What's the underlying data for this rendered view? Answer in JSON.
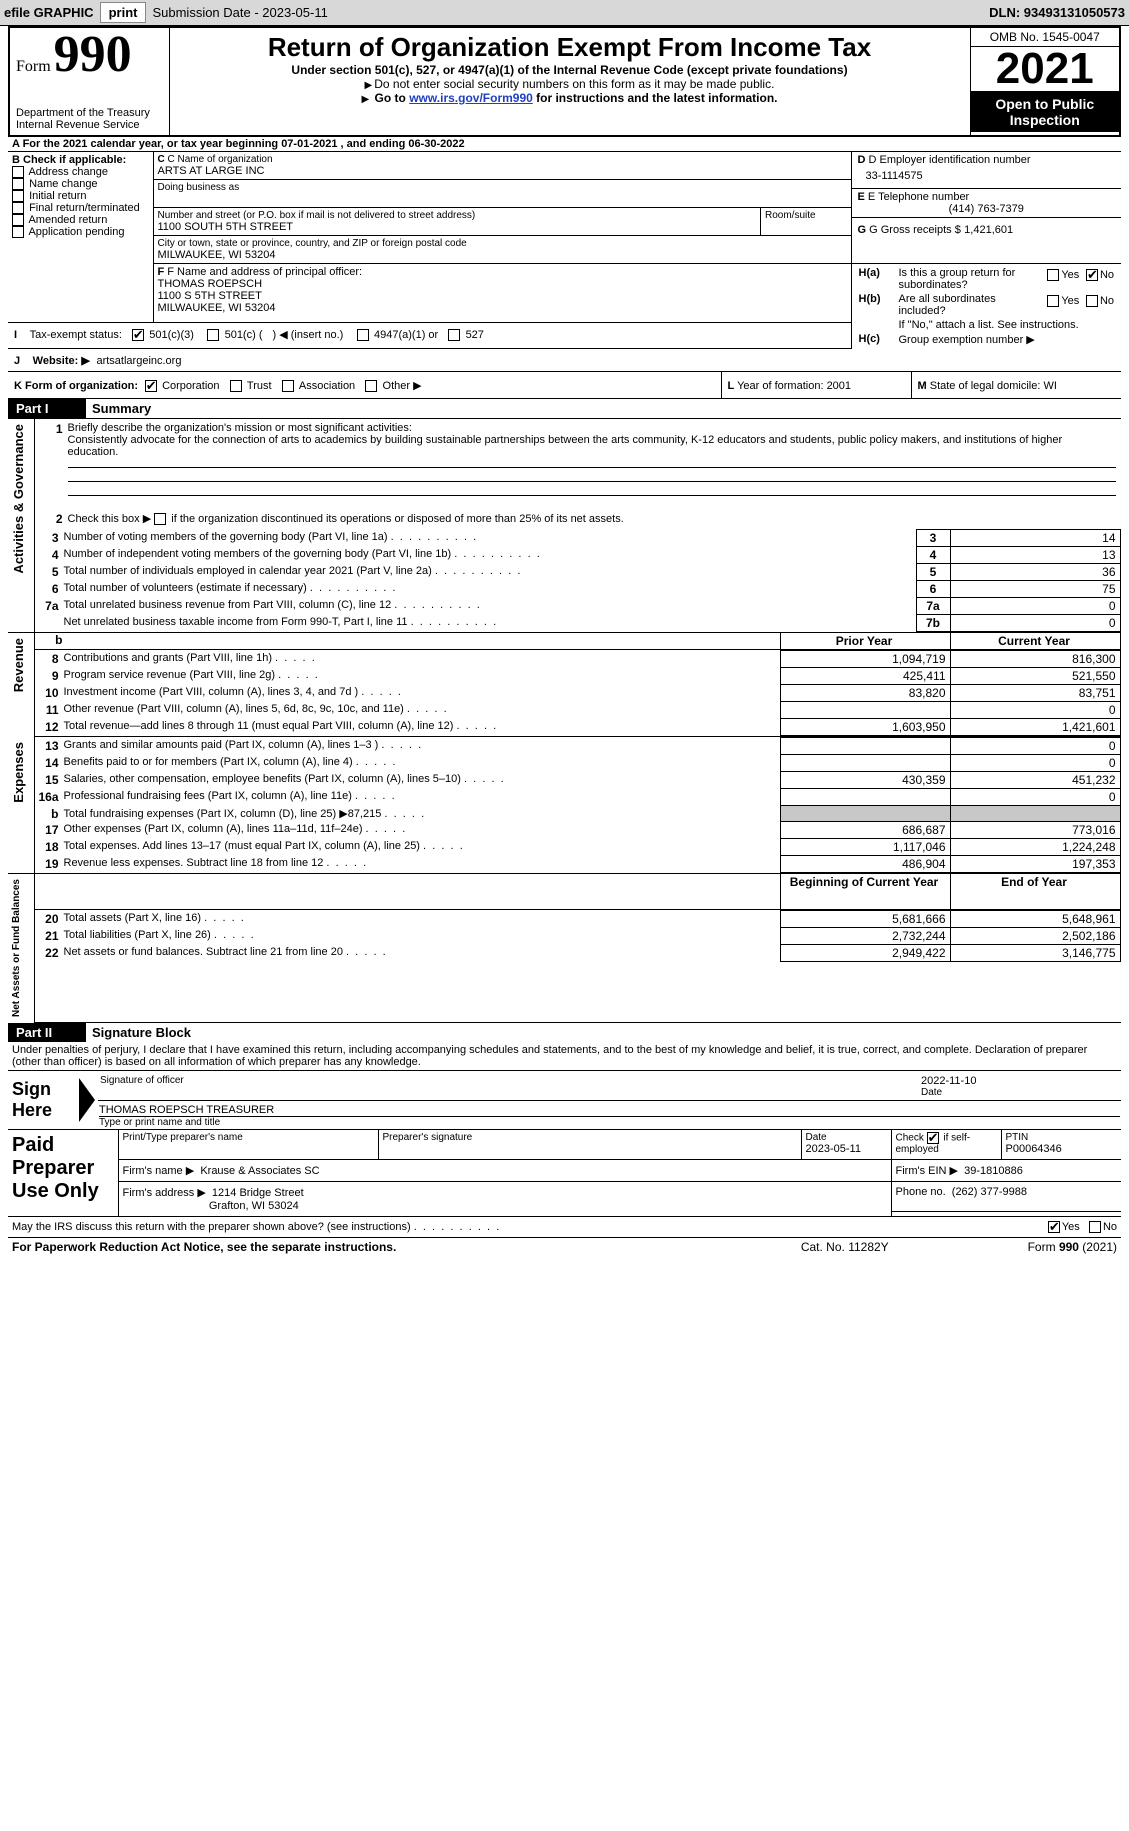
{
  "topbar": {
    "efile": "efile GRAPHIC print ",
    "button": "print",
    "submission": "Submission Date - 2023-05-11",
    "dln": "DLN: 93493131050573"
  },
  "header": {
    "form_word": "Form",
    "form_no": "990",
    "dept": "Department of the Treasury",
    "irs": "Internal Revenue Service",
    "title": "Return of Organization Exempt From Income Tax",
    "sub": "Under section 501(c), 527, or 4947(a)(1) of the Internal Revenue Code (except private foundations)",
    "note1": "Do not enter social security numbers on this form as it may be made public.",
    "note2_pre": "Go to ",
    "note2_link": "www.irs.gov/Form990",
    "note2_post": " for instructions and the latest information.",
    "omb": "OMB No. 1545-0047",
    "year": "2021",
    "open": "Open to Public Inspection"
  },
  "blockA": {
    "line": "A For the 2021 calendar year, or tax year beginning 07-01-2021     , and ending 06-30-2022",
    "b_label": "B Check if applicable:",
    "checks": [
      "Address change",
      "Name change",
      "Initial return",
      "Final return/terminated",
      "Amended return",
      "Application pending"
    ],
    "c_label": "C Name of organization",
    "org": "ARTS AT LARGE INC",
    "dba_label": "Doing business as",
    "dba": "",
    "addr_label": "Number and street (or P.O. box if mail is not delivered to street address)",
    "room_label": "Room/suite",
    "addr": "1100 SOUTH 5TH STREET",
    "city_label": "City or town, state or province, country, and ZIP or foreign postal code",
    "city": "MILWAUKEE, WI  53204",
    "d_label": "D Employer identification number",
    "ein": "33-1114575",
    "e_label": "E Telephone number",
    "phone": "(414) 763-7379",
    "g_label": "G Gross receipts $",
    "gross": "1,421,601",
    "f_label": "F Name and address of principal officer:",
    "officer_name": "THOMAS ROEPSCH",
    "officer_addr1": "1100 S 5TH STREET",
    "officer_addr2": "MILWAUKEE, WI  53204",
    "h_a": "Is this a group return for subordinates?",
    "h_b": "Are all subordinates included?",
    "h_note": "If \"No,\" attach a list. See instructions.",
    "h_c": "Group exemption number ▶",
    "yes": "Yes",
    "no": "No"
  },
  "blockI": {
    "label": "Tax-exempt status:",
    "opt1": "501(c)(3)",
    "opt2a": "501(c) (",
    "opt2b": ") ◀ (insert no.)",
    "opt3": "4947(a)(1) or",
    "opt4": "527"
  },
  "blockJ": {
    "label": "Website: ▶",
    "site": "artsatlargeinc.org"
  },
  "blockK": {
    "label": "K Form of organization:",
    "opts": [
      "Corporation",
      "Trust",
      "Association",
      "Other ▶"
    ],
    "l_label": "L Year of formation:",
    "l_val": "2001",
    "m_label": "M State of legal domicile:",
    "m_val": "WI"
  },
  "part1": {
    "hdr": "Part I",
    "title": "Summary",
    "vlabels": [
      "Activities & Governance",
      "Revenue",
      "Expenses",
      "Net Assets or Fund Balances"
    ],
    "mission_label": "Briefly describe the organization's mission or most significant activities:",
    "mission": "Consistently advocate for the connection of arts to academics by building sustainable partnerships between the arts community, K-12 educators and students, public policy makers, and institutions of higher education.",
    "line2": "Check this box ▶        if the organization discontinued its operations or disposed of more than 25% of its net assets.",
    "rows_ag": [
      {
        "n": "3",
        "t": "Number of voting members of the governing body (Part VI, line 1a)",
        "b": "3",
        "v": "14"
      },
      {
        "n": "4",
        "t": "Number of independent voting members of the governing body (Part VI, line 1b)",
        "b": "4",
        "v": "13"
      },
      {
        "n": "5",
        "t": "Total number of individuals employed in calendar year 2021 (Part V, line 2a)",
        "b": "5",
        "v": "36"
      },
      {
        "n": "6",
        "t": "Total number of volunteers (estimate if necessary)",
        "b": "6",
        "v": "75"
      },
      {
        "n": "7a",
        "t": "Total unrelated business revenue from Part VIII, column (C), line 12",
        "b": "7a",
        "v": "0"
      },
      {
        "n": "",
        "t": "Net unrelated business taxable income from Form 990-T, Part I, line 11",
        "b": "7b",
        "v": "0"
      }
    ],
    "col_prior": "Prior Year",
    "col_curr": "Current Year",
    "rows_rev": [
      {
        "n": "8",
        "t": "Contributions and grants (Part VIII, line 1h)",
        "p": "1,094,719",
        "c": "816,300"
      },
      {
        "n": "9",
        "t": "Program service revenue (Part VIII, line 2g)",
        "p": "425,411",
        "c": "521,550"
      },
      {
        "n": "10",
        "t": "Investment income (Part VIII, column (A), lines 3, 4, and 7d )",
        "p": "83,820",
        "c": "83,751"
      },
      {
        "n": "11",
        "t": "Other revenue (Part VIII, column (A), lines 5, 6d, 8c, 9c, 10c, and 11e)",
        "p": "",
        "c": "0"
      },
      {
        "n": "12",
        "t": "Total revenue—add lines 8 through 11 (must equal Part VIII, column (A), line 12)",
        "p": "1,603,950",
        "c": "1,421,601"
      }
    ],
    "rows_exp": [
      {
        "n": "13",
        "t": "Grants and similar amounts paid (Part IX, column (A), lines 1–3 )",
        "p": "",
        "c": "0"
      },
      {
        "n": "14",
        "t": "Benefits paid to or for members (Part IX, column (A), line 4)",
        "p": "",
        "c": "0"
      },
      {
        "n": "15",
        "t": "Salaries, other compensation, employee benefits (Part IX, column (A), lines 5–10)",
        "p": "430,359",
        "c": "451,232"
      },
      {
        "n": "16a",
        "t": "Professional fundraising fees (Part IX, column (A), line 11e)",
        "p": "",
        "c": "0"
      },
      {
        "n": "b",
        "t": "Total fundraising expenses (Part IX, column (D), line 25) ▶87,215",
        "p": "SHADE",
        "c": "SHADE"
      },
      {
        "n": "17",
        "t": "Other expenses (Part IX, column (A), lines 11a–11d, 11f–24e)",
        "p": "686,687",
        "c": "773,016"
      },
      {
        "n": "18",
        "t": "Total expenses. Add lines 13–17 (must equal Part IX, column (A), line 25)",
        "p": "1,117,046",
        "c": "1,224,248"
      },
      {
        "n": "19",
        "t": "Revenue less expenses. Subtract line 18 from line 12",
        "p": "486,904",
        "c": "197,353"
      }
    ],
    "col_beg": "Beginning of Current Year",
    "col_end": "End of Year",
    "rows_net": [
      {
        "n": "20",
        "t": "Total assets (Part X, line 16)",
        "p": "5,681,666",
        "c": "5,648,961"
      },
      {
        "n": "21",
        "t": "Total liabilities (Part X, line 26)",
        "p": "2,732,244",
        "c": "2,502,186"
      },
      {
        "n": "22",
        "t": "Net assets or fund balances. Subtract line 21 from line 20",
        "p": "2,949,422",
        "c": "3,146,775"
      }
    ]
  },
  "part2": {
    "hdr": "Part II",
    "title": "Signature Block",
    "decl": "Under penalties of perjury, I declare that I have examined this return, including accompanying schedules and statements, and to the best of my knowledge and belief, it is true, correct, and complete. Declaration of preparer (other than officer) is based on all information of which preparer has any knowledge.",
    "sign_here": "Sign Here",
    "sig_officer": "Signature of officer",
    "sig_date": "Date",
    "sig_date_val": "2022-11-10",
    "printed": "THOMAS ROEPSCH  TREASURER",
    "printed_label": "Type or print name and title",
    "paid": "Paid Preparer Use Only",
    "prep_name_label": "Print/Type preparer's name",
    "prep_sig_label": "Preparer's signature",
    "prep_date_label": "Date",
    "prep_date": "2023-05-11",
    "self_label": "Check         if self-employed",
    "ptin_label": "PTIN",
    "ptin": "P00064346",
    "firm_name_label": "Firm's name     ▶",
    "firm_name": "Krause & Associates SC",
    "firm_ein_label": "Firm's EIN ▶",
    "firm_ein": "39-1810886",
    "firm_addr_label": "Firm's address ▶",
    "firm_addr1": "1214 Bridge Street",
    "firm_addr2": "Grafton, WI  53024",
    "firm_phone_label": "Phone no.",
    "firm_phone": "(262) 377-9988",
    "discuss": "May the IRS discuss this return with the preparer shown above? (see instructions)"
  },
  "footer": {
    "pra": "For Paperwork Reduction Act Notice, see the separate instructions.",
    "cat": "Cat. No. 11282Y",
    "form": "Form 990 (2021)"
  },
  "colors": {
    "topbar_bg": "#d8d8d8",
    "link": "#2040c0",
    "shade": "#c8c8c8"
  }
}
